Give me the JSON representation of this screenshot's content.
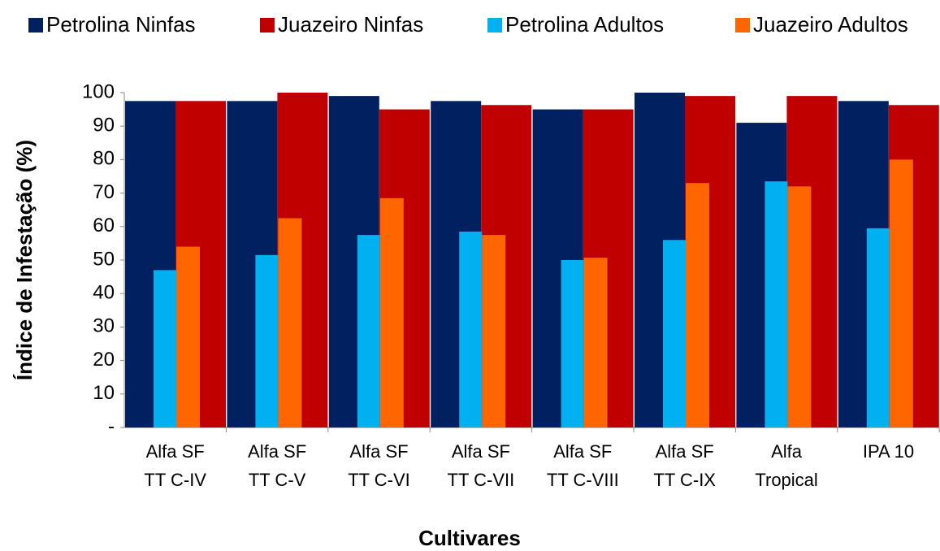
{
  "chart_data": {
    "type": "bar",
    "y_label": "Índice de Infestação (%)",
    "x_label": "Cultivares",
    "categories": [
      "Alfa SF\nTT C-IV",
      "Alfa SF\nTT C-V",
      "Alfa SF\nTT C-VI",
      "Alfa SF\nTT C-VII",
      "Alfa SF\nTT C-VIII",
      "Alfa SF\nTT C-IX",
      "Alfa\nTropical",
      "IPA 10"
    ],
    "series": [
      {
        "name": "Petrolina Ninfas",
        "color": "#002060",
        "values": [
          97.5,
          97.5,
          99,
          97.5,
          95,
          100,
          91,
          97.5
        ]
      },
      {
        "name": "Juazeiro Ninfas",
        "color": "#c00000",
        "values": [
          97.5,
          100,
          95,
          96.3,
          95,
          99,
          99,
          96.3
        ]
      },
      {
        "name": "Petrolina Adultos",
        "color": "#00b0f0",
        "values": [
          47,
          51.5,
          57.5,
          58.5,
          50,
          56,
          73.5,
          59.5
        ]
      },
      {
        "name": "Juazeiro Adultos",
        "color": "#ff6600",
        "values": [
          54,
          62.5,
          68.5,
          57.5,
          50.7,
          73,
          72,
          80
        ]
      }
    ],
    "ylim": [
      0,
      100
    ],
    "yticks": [
      {
        "value": 0,
        "label": "-"
      },
      10,
      20,
      30,
      40,
      50,
      60,
      70,
      80,
      90,
      100
    ],
    "legend": "top",
    "grid": false
  }
}
